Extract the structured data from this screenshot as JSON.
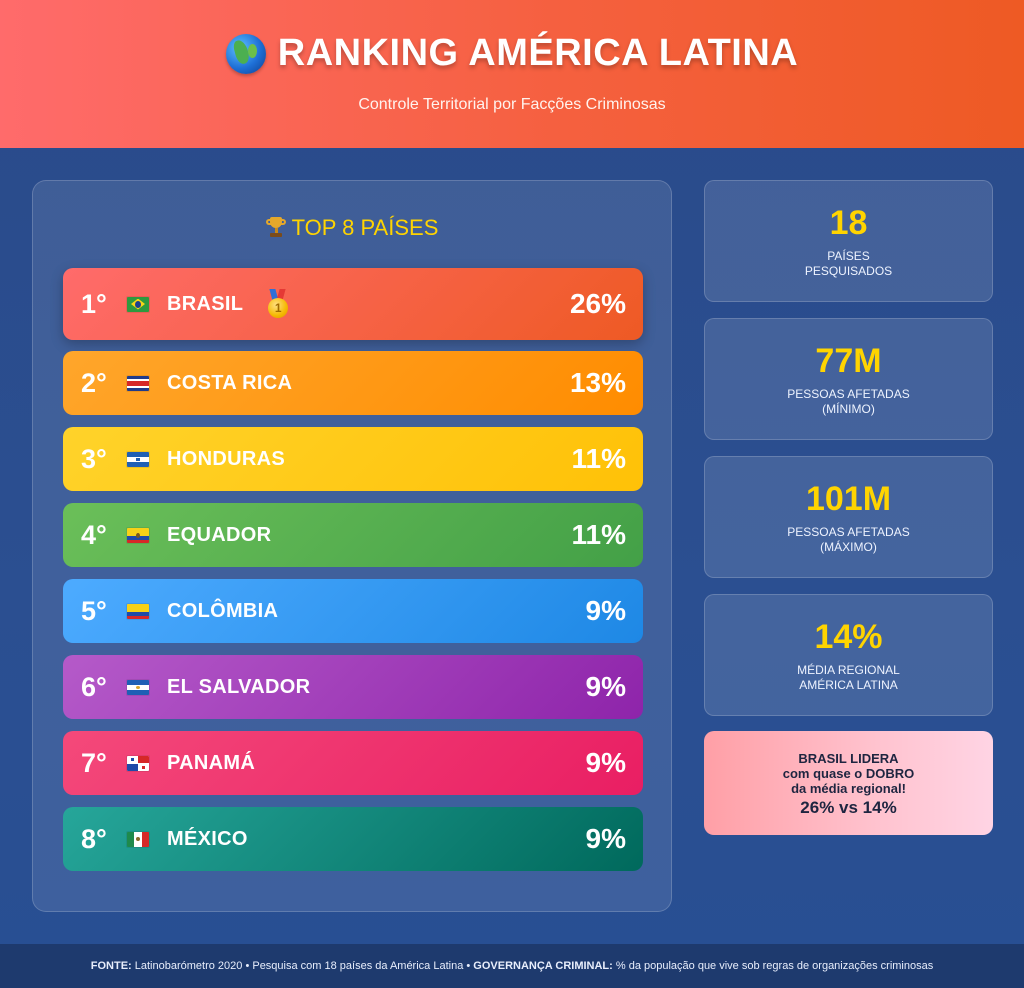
{
  "header": {
    "globe_icon": "globe-americas-icon",
    "title": "RANKING AMÉRICA LATINA",
    "subtitle": "Controle Territorial por Facções Criminosas"
  },
  "ranking": {
    "title": "TOP 8 PAÍSES",
    "title_icon": "trophy-icon",
    "items": [
      {
        "rank": "1°",
        "country": "BRASIL",
        "percent": "26%",
        "value": 26,
        "flag": "brazil-flag-icon",
        "medal": "1",
        "colors": [
          "#ff6b6b",
          "#ee5a24"
        ]
      },
      {
        "rank": "2°",
        "country": "COSTA RICA",
        "percent": "13%",
        "value": 13,
        "flag": "costa-rica-flag-icon",
        "colors": [
          "#ffa62b",
          "#ff8c00"
        ]
      },
      {
        "rank": "3°",
        "country": "HONDURAS",
        "percent": "11%",
        "value": 11,
        "flag": "honduras-flag-icon",
        "colors": [
          "#ffd32a",
          "#ffc107"
        ]
      },
      {
        "rank": "4°",
        "country": "EQUADOR",
        "percent": "11%",
        "value": 11,
        "flag": "ecuador-flag-icon",
        "colors": [
          "#6bbf59",
          "#43a047"
        ]
      },
      {
        "rank": "5°",
        "country": "COLÔMBIA",
        "percent": "9%",
        "value": 9,
        "flag": "colombia-flag-icon",
        "colors": [
          "#4dabff",
          "#1e88e5"
        ]
      },
      {
        "rank": "6°",
        "country": "EL SALVADOR",
        "percent": "9%",
        "value": 9,
        "flag": "el-salvador-flag-icon",
        "colors": [
          "#b55ac9",
          "#8e24aa"
        ]
      },
      {
        "rank": "7°",
        "country": "PANAMÁ",
        "percent": "9%",
        "value": 9,
        "flag": "panama-flag-icon",
        "colors": [
          "#f4497a",
          "#e91e63"
        ]
      },
      {
        "rank": "8°",
        "country": "MÉXICO",
        "percent": "9%",
        "value": 9,
        "flag": "mexico-flag-icon",
        "colors": [
          "#26a69a",
          "#00695c"
        ]
      }
    ]
  },
  "stats": [
    {
      "value": "18",
      "label": "PAÍSES\nPESQUISADOS"
    },
    {
      "value": "77M",
      "label": "PESSOAS AFETADAS\n(MÍNIMO)"
    },
    {
      "value": "101M",
      "label": "PESSOAS AFETADAS\n(MÁXIMO)"
    },
    {
      "value": "14%",
      "label": "MÉDIA REGIONAL\nAMÉRICA LATINA"
    }
  ],
  "highlight": {
    "text": "BRASIL LIDERA\ncom quase o DOBRO\nda média regional!",
    "compare": "26% vs 14%"
  },
  "footer": {
    "source_label": "FONTE:",
    "source_text": " Latinobarómetro 2020 • Pesquisa com 18 países da América Latina • ",
    "gov_label": "GOVERNANÇA CRIMINAL:",
    "gov_text": " % da população que vive sob regras de organizações criminosas"
  },
  "colors": {
    "header_start": "#ff6b6b",
    "header_end": "#ee5a24",
    "accent_yellow": "#ffd400",
    "background": "#2b4f91"
  }
}
